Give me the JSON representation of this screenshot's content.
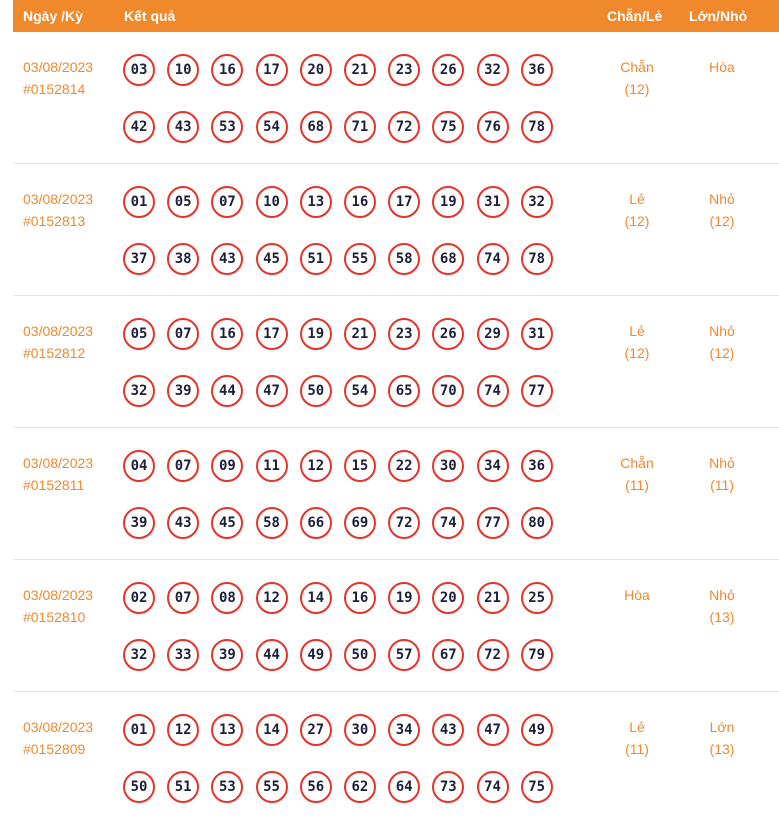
{
  "header": {
    "date_label": "Ngày /Kỳ",
    "result_label": "Kết quả",
    "chanle_label": "Chẵn/Lẻ",
    "lonnho_label": "Lớn/Nhỏ"
  },
  "rows": [
    {
      "date": "03/08/2023",
      "id": "#0152814",
      "line1": [
        "03",
        "10",
        "16",
        "17",
        "20",
        "21",
        "23",
        "26",
        "32",
        "36"
      ],
      "line2": [
        "42",
        "43",
        "53",
        "54",
        "68",
        "71",
        "72",
        "75",
        "76",
        "78"
      ],
      "chanle": "Chẵn",
      "chanle_count": "(12)",
      "lonnho": "Hòa",
      "lonnho_count": ""
    },
    {
      "date": "03/08/2023",
      "id": "#0152813",
      "line1": [
        "01",
        "05",
        "07",
        "10",
        "13",
        "16",
        "17",
        "19",
        "31",
        "32"
      ],
      "line2": [
        "37",
        "38",
        "43",
        "45",
        "51",
        "55",
        "58",
        "68",
        "74",
        "78"
      ],
      "chanle": "Lẻ",
      "chanle_count": "(12)",
      "lonnho": "Nhỏ",
      "lonnho_count": "(12)"
    },
    {
      "date": "03/08/2023",
      "id": "#0152812",
      "line1": [
        "05",
        "07",
        "16",
        "17",
        "19",
        "21",
        "23",
        "26",
        "29",
        "31"
      ],
      "line2": [
        "32",
        "39",
        "44",
        "47",
        "50",
        "54",
        "65",
        "70",
        "74",
        "77"
      ],
      "chanle": "Lẻ",
      "chanle_count": "(12)",
      "lonnho": "Nhỏ",
      "lonnho_count": "(12)"
    },
    {
      "date": "03/08/2023",
      "id": "#0152811",
      "line1": [
        "04",
        "07",
        "09",
        "11",
        "12",
        "15",
        "22",
        "30",
        "34",
        "36"
      ],
      "line2": [
        "39",
        "43",
        "45",
        "58",
        "66",
        "69",
        "72",
        "74",
        "77",
        "80"
      ],
      "chanle": "Chẵn",
      "chanle_count": "(11)",
      "lonnho": "Nhỏ",
      "lonnho_count": "(11)"
    },
    {
      "date": "03/08/2023",
      "id": "#0152810",
      "line1": [
        "02",
        "07",
        "08",
        "12",
        "14",
        "16",
        "19",
        "20",
        "21",
        "25"
      ],
      "line2": [
        "32",
        "33",
        "39",
        "44",
        "49",
        "50",
        "57",
        "67",
        "72",
        "79"
      ],
      "chanle": "Hòa",
      "chanle_count": "",
      "lonnho": "Nhỏ",
      "lonnho_count": "(13)"
    },
    {
      "date": "03/08/2023",
      "id": "#0152809",
      "line1": [
        "01",
        "12",
        "13",
        "14",
        "27",
        "30",
        "34",
        "43",
        "47",
        "49"
      ],
      "line2": [
        "50",
        "51",
        "53",
        "55",
        "56",
        "62",
        "64",
        "73",
        "74",
        "75"
      ],
      "chanle": "Lẻ",
      "chanle_count": "(11)",
      "lonnho": "Lớn",
      "lonnho_count": "(13)"
    }
  ]
}
